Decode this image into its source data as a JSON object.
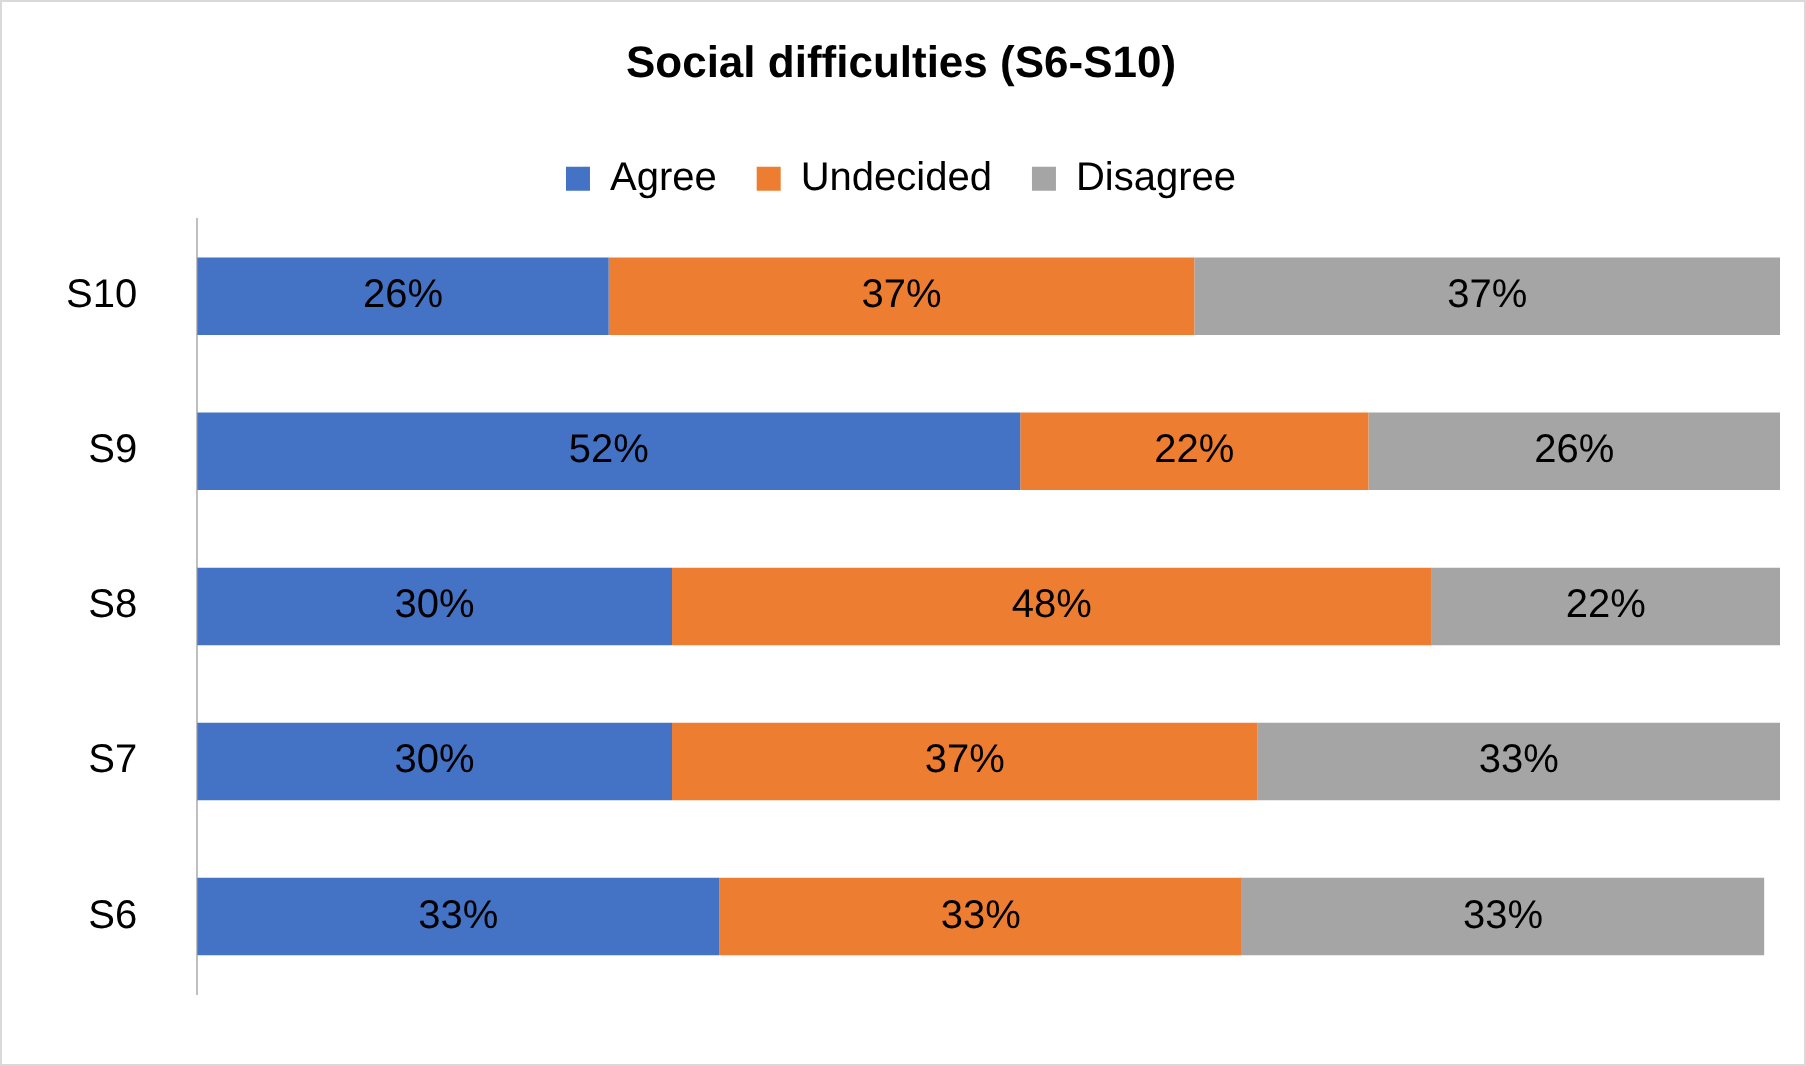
{
  "chart_data": {
    "type": "bar",
    "orientation": "horizontal",
    "stacked": true,
    "title": "Social difficulties (S6-S10)",
    "categories": [
      "S10",
      "S9",
      "S8",
      "S7",
      "S6"
    ],
    "series": [
      {
        "name": "Agree",
        "color": "#4472c4",
        "values": [
          26,
          52,
          30,
          30,
          33
        ],
        "value_labels": [
          "26%",
          "52%",
          "30%",
          "30%",
          "33%"
        ]
      },
      {
        "name": "Undecided",
        "color": "#ed7d31",
        "values": [
          37,
          22,
          48,
          37,
          33
        ],
        "value_labels": [
          "37%",
          "22%",
          "48%",
          "37%",
          "33%"
        ]
      },
      {
        "name": "Disagree",
        "color": "#a5a5a5",
        "values": [
          37,
          26,
          22,
          33,
          33
        ],
        "value_labels": [
          "37%",
          "26%",
          "22%",
          "33%",
          "33%"
        ]
      }
    ],
    "legend": "top",
    "tick_labels": "y"
  }
}
